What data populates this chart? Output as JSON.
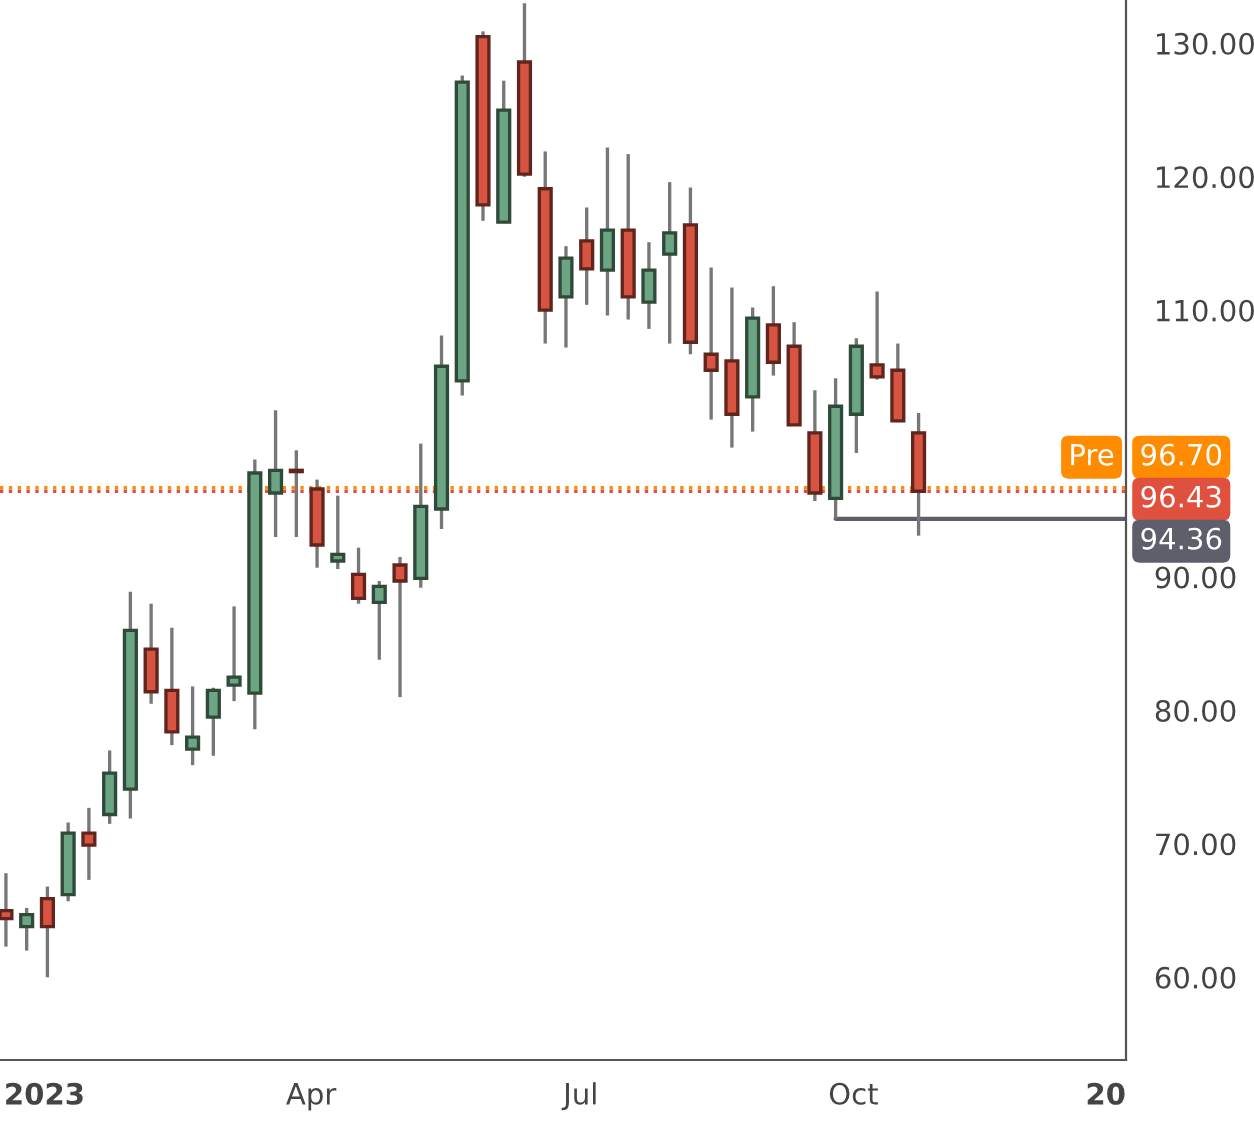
{
  "chart_data": {
    "type": "candlestick",
    "x": [
      "2022-12-19",
      "2022-12-26",
      "2023-01-02",
      "2023-01-09",
      "2023-01-16",
      "2023-01-23",
      "2023-01-30",
      "2023-02-06",
      "2023-02-13",
      "2023-02-20",
      "2023-02-27",
      "2023-03-06",
      "2023-03-13",
      "2023-03-20",
      "2023-03-27",
      "2023-04-03",
      "2023-04-10",
      "2023-04-17",
      "2023-04-24",
      "2023-05-01",
      "2023-05-08",
      "2023-05-15",
      "2023-05-22",
      "2023-05-29",
      "2023-06-05",
      "2023-06-12",
      "2023-06-19",
      "2023-06-26",
      "2023-07-03",
      "2023-07-10",
      "2023-07-17",
      "2023-07-24",
      "2023-07-31",
      "2023-08-07",
      "2023-08-14",
      "2023-08-21",
      "2023-08-28",
      "2023-09-04",
      "2023-09-11",
      "2023-09-18",
      "2023-09-25",
      "2023-10-02",
      "2023-10-09",
      "2023-10-16",
      "2023-10-23"
    ],
    "ohlc": [
      [
        65.0,
        67.8,
        62.3,
        64.4
      ],
      [
        63.8,
        65.2,
        62.0,
        64.7
      ],
      [
        65.9,
        66.8,
        60.0,
        63.8
      ],
      [
        66.2,
        71.6,
        65.7,
        70.8
      ],
      [
        70.8,
        72.7,
        67.3,
        69.9
      ],
      [
        72.2,
        77.0,
        71.5,
        75.3
      ],
      [
        74.1,
        88.9,
        71.9,
        86.0
      ],
      [
        84.6,
        88.0,
        80.5,
        81.4
      ],
      [
        81.5,
        86.2,
        77.4,
        78.4
      ],
      [
        77.1,
        81.8,
        75.9,
        78.0
      ],
      [
        79.5,
        81.7,
        76.6,
        81.5
      ],
      [
        81.9,
        87.8,
        80.7,
        82.5
      ],
      [
        81.3,
        98.8,
        78.6,
        97.8
      ],
      [
        96.3,
        102.5,
        93.0,
        98.0
      ],
      [
        98.0,
        99.5,
        93.0,
        97.9
      ],
      [
        96.6,
        97.3,
        90.7,
        92.4
      ],
      [
        91.2,
        96.1,
        90.6,
        91.7
      ],
      [
        90.2,
        92.2,
        88.0,
        88.4
      ],
      [
        88.1,
        89.7,
        83.8,
        89.3
      ],
      [
        90.9,
        91.5,
        81.0,
        89.7
      ],
      [
        89.9,
        100.0,
        89.2,
        95.3
      ],
      [
        95.1,
        108.1,
        93.6,
        105.8
      ],
      [
        104.7,
        127.6,
        103.6,
        127.1
      ],
      [
        130.5,
        130.9,
        116.7,
        117.9
      ],
      [
        116.6,
        127.2,
        116.6,
        125.0
      ],
      [
        128.6,
        133.0,
        120.0,
        120.2
      ],
      [
        119.1,
        121.9,
        107.5,
        110.0
      ],
      [
        111.0,
        114.8,
        107.2,
        113.9
      ],
      [
        115.2,
        117.7,
        110.4,
        113.1
      ],
      [
        113.0,
        122.2,
        109.6,
        116.0
      ],
      [
        116.0,
        121.7,
        109.3,
        111.0
      ],
      [
        110.6,
        115.1,
        108.6,
        113.0
      ],
      [
        114.2,
        119.6,
        107.5,
        115.8
      ],
      [
        116.4,
        119.2,
        106.7,
        107.6
      ],
      [
        106.7,
        113.2,
        101.8,
        105.5
      ],
      [
        106.2,
        111.7,
        99.7,
        102.2
      ],
      [
        103.5,
        110.2,
        100.9,
        109.4
      ],
      [
        108.9,
        111.8,
        105.1,
        106.1
      ],
      [
        107.3,
        109.1,
        101.4,
        101.4
      ],
      [
        100.8,
        104.0,
        95.7,
        96.3
      ],
      [
        95.9,
        104.9,
        94.36,
        102.8
      ],
      [
        102.2,
        107.9,
        99.3,
        107.3
      ],
      [
        105.9,
        111.4,
        104.8,
        105.0
      ],
      [
        105.5,
        107.5,
        101.6,
        101.7
      ],
      [
        100.8,
        102.3,
        93.1,
        96.43
      ]
    ],
    "colors": [
      "#d75442",
      "#6ba583",
      "#d75442",
      "#6ba583",
      "#d75442",
      "#6ba583",
      "#6ba583",
      "#d75442",
      "#d75442",
      "#6ba583",
      "#6ba583",
      "#6ba583",
      "#6ba583",
      "#6ba583",
      "#d75442",
      "#d75442",
      "#6ba583",
      "#d75442",
      "#6ba583",
      "#d75442",
      "#6ba583",
      "#6ba583",
      "#6ba583",
      "#d75442",
      "#6ba583",
      "#d75442",
      "#d75442",
      "#6ba583",
      "#d75442",
      "#6ba583",
      "#d75442",
      "#6ba583",
      "#6ba583",
      "#d75442",
      "#d75442",
      "#d75442",
      "#6ba583",
      "#d75442",
      "#d75442",
      "#d75442",
      "#6ba583",
      "#6ba583",
      "#d75442",
      "#d75442",
      "#d75442"
    ],
    "xlim": [
      "2022-12-17",
      "2024-01-01"
    ],
    "xticks": [
      {
        "value": "2023-01-01",
        "label": "2023"
      },
      {
        "value": "2023-04-01",
        "label": "Apr"
      },
      {
        "value": "2023-07-01",
        "label": "Jul"
      },
      {
        "value": "2023-10-01",
        "label": "Oct"
      },
      {
        "value": "2024-01-01",
        "label": "20"
      }
    ],
    "ylim": [
      53.8,
      133.25
    ],
    "yticks": [
      {
        "value": 60,
        "label": "60.00"
      },
      {
        "value": 70,
        "label": "70.00"
      },
      {
        "value": 80,
        "label": "80.00"
      },
      {
        "value": 90,
        "label": "90.00"
      },
      {
        "value": 110,
        "label": "110.00"
      },
      {
        "value": 120,
        "label": "120.00"
      },
      {
        "value": 130,
        "label": "130.00"
      }
    ],
    "ref_lines": [
      {
        "axis": "y",
        "value": 96.7,
        "label": "96.70",
        "color": "#ff8c00",
        "line_style": "dotted"
      },
      {
        "axis": "y",
        "value": 96.43,
        "label": "96.43",
        "color": "#e0503f",
        "line_style": "dotted"
      }
    ],
    "annotations": [
      {
        "text": "Pre",
        "y": 96.7
      },
      {
        "text": "94.36",
        "x": "2023-09-25",
        "y": 94.36
      }
    ],
    "grid": false
  }
}
